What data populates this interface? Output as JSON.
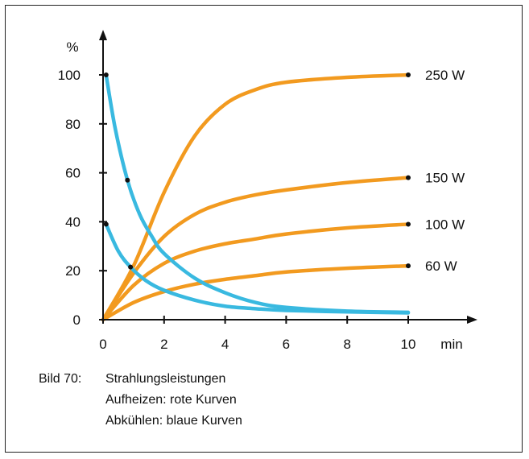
{
  "chart_data": {
    "type": "line",
    "title": "",
    "xlabel": "min",
    "ylabel": "%",
    "xlim": [
      0,
      10
    ],
    "ylim": [
      0,
      100
    ],
    "x_ticks": [
      0,
      2,
      4,
      6,
      8,
      10
    ],
    "y_ticks": [
      0,
      20,
      40,
      60,
      80,
      100
    ],
    "grid": false,
    "colors": {
      "heating": "#f29a1f",
      "cooling": "#39b9e0",
      "axis": "#111111",
      "dot": "#111111"
    },
    "series": [
      {
        "name": "250 W",
        "group": "heating",
        "x": [
          0,
          1,
          2,
          3,
          4,
          5,
          6,
          8,
          10
        ],
        "y": [
          0,
          22,
          52,
          75,
          88,
          94,
          97,
          99,
          100
        ]
      },
      {
        "name": "150 W",
        "group": "heating",
        "x": [
          0,
          1,
          2,
          3,
          4,
          5,
          6,
          8,
          10
        ],
        "y": [
          0,
          19,
          34,
          43,
          48,
          51,
          53,
          56,
          58
        ]
      },
      {
        "name": "100 W",
        "group": "heating",
        "x": [
          0,
          1,
          2,
          3,
          4,
          5,
          6,
          8,
          10
        ],
        "y": [
          0,
          14,
          23,
          28,
          31,
          33,
          35,
          37.5,
          39
        ]
      },
      {
        "name": "60 W",
        "group": "heating",
        "x": [
          0,
          1,
          2,
          3,
          4,
          5,
          6,
          8,
          10
        ],
        "y": [
          0,
          7,
          11.5,
          14.5,
          16.5,
          18,
          19.5,
          21,
          22
        ]
      },
      {
        "group": "cooling",
        "x": [
          0.1,
          0.4,
          0.8,
          1.2,
          1.6,
          2,
          3,
          4,
          5,
          6,
          8,
          10
        ],
        "y": [
          100,
          78,
          57,
          43,
          34,
          27,
          17,
          11,
          7,
          5,
          3.5,
          3
        ]
      },
      {
        "group": "cooling",
        "x": [
          0.1,
          0.5,
          0.9,
          1.4,
          2,
          3,
          4,
          5,
          6,
          8,
          10
        ],
        "y": [
          39,
          28,
          21.5,
          16,
          12,
          8,
          5.5,
          4.5,
          3.8,
          3.2,
          2.8
        ]
      }
    ],
    "markers": [
      {
        "x": 10,
        "y": 100,
        "label": "250 W"
      },
      {
        "x": 10,
        "y": 58,
        "label": "150 W"
      },
      {
        "x": 10,
        "y": 39,
        "label": "100 W"
      },
      {
        "x": 10,
        "y": 22,
        "label": "60 W"
      },
      {
        "x": 0.1,
        "y": 100,
        "label": ""
      },
      {
        "x": 0.8,
        "y": 57,
        "label": ""
      },
      {
        "x": 0.1,
        "y": 39,
        "label": ""
      },
      {
        "x": 0.9,
        "y": 21.5,
        "label": ""
      }
    ]
  },
  "caption": {
    "number": "Bild 70:",
    "line1": "Strahlungsleistungen",
    "line2": "Aufheizen: rote Kurven",
    "line3": "Abkühlen: blaue Kurven"
  }
}
